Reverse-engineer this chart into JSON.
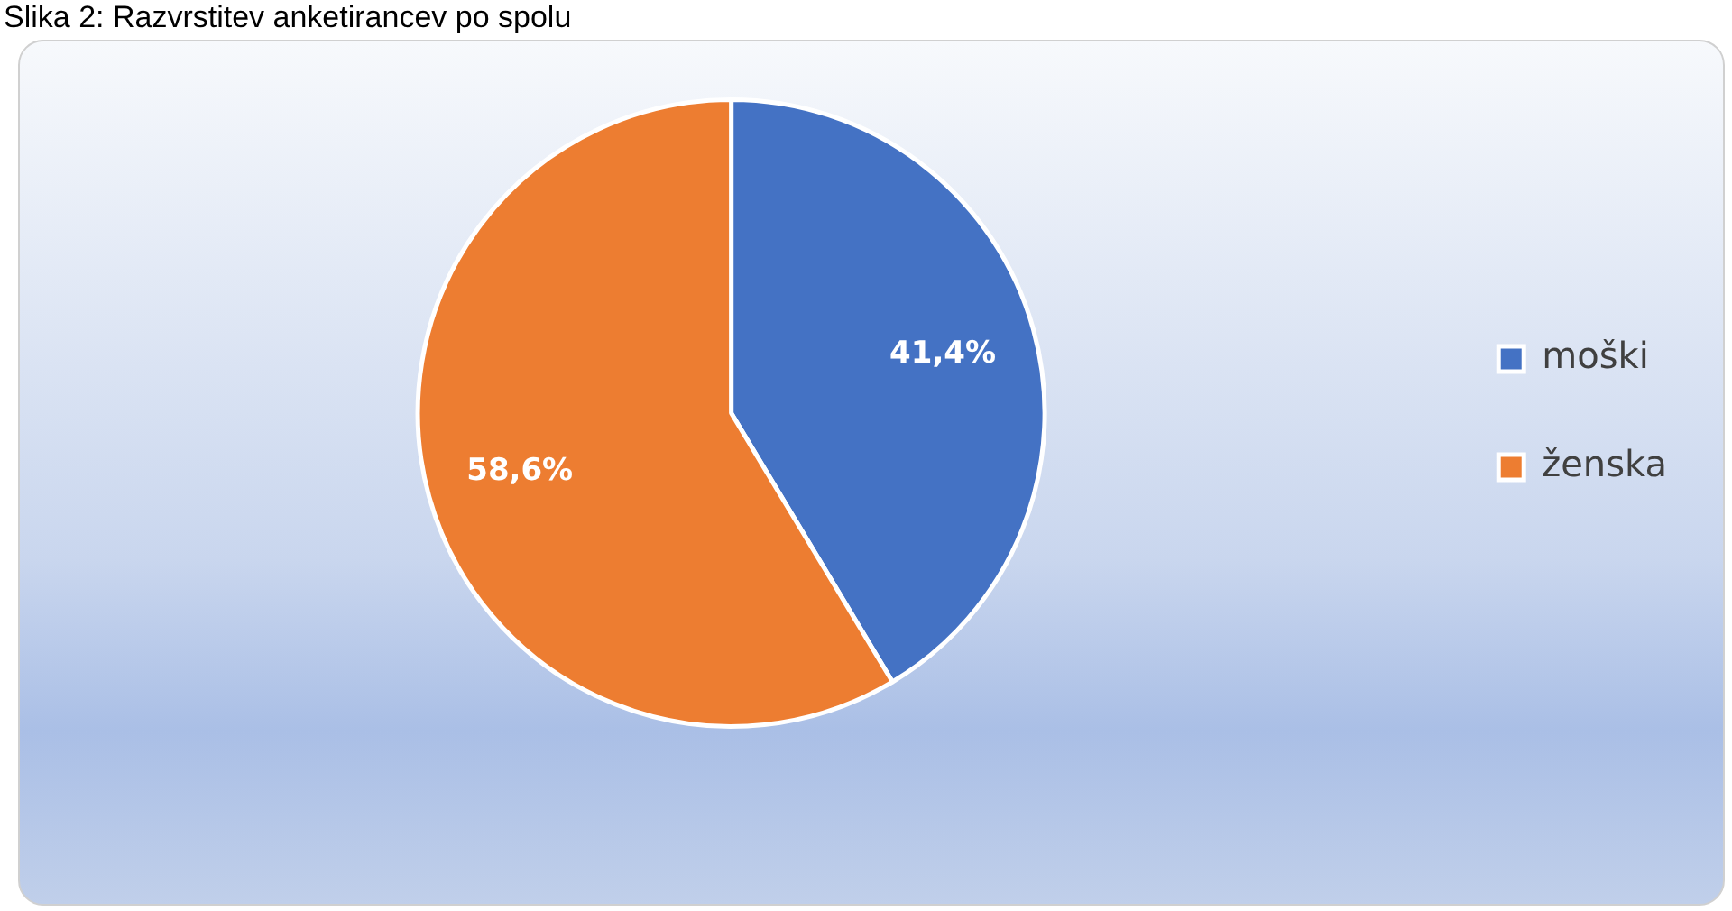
{
  "chart_data": {
    "type": "pie",
    "title": "Slika 2: Razvrstitev anketirancev po spolu",
    "categories": [
      "moški",
      "ženska"
    ],
    "values": [
      41.4,
      58.6
    ],
    "colors": [
      "#4472c4",
      "#ed7d31"
    ],
    "value_labels": [
      "41,4%",
      "58,6%"
    ],
    "legend": "right"
  }
}
